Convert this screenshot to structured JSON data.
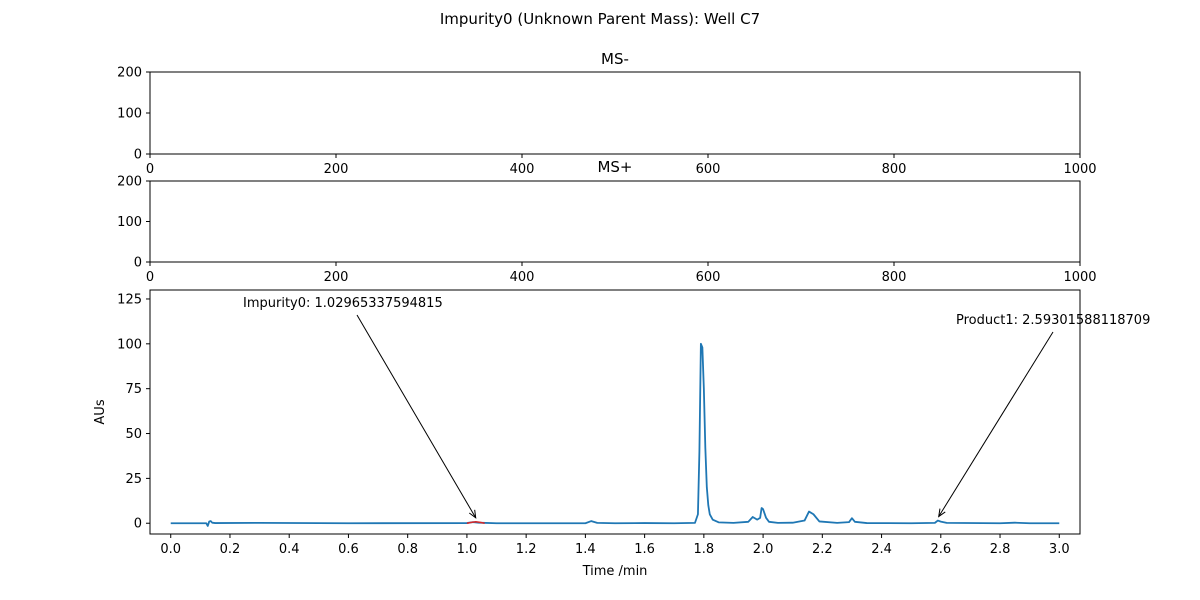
{
  "figure": {
    "suptitle": "Impurity0 (Unknown Parent Mass): Well C7"
  },
  "chart_data": [
    {
      "type": "bar",
      "title": "MS-",
      "xlabel": "",
      "ylabel": "",
      "xlim": [
        0,
        1000
      ],
      "ylim": [
        0,
        200
      ],
      "xticks": [
        0,
        200,
        400,
        600,
        800,
        1000
      ],
      "yticks": [
        0,
        100,
        200
      ],
      "series": []
    },
    {
      "type": "bar",
      "title": "MS+",
      "xlabel": "",
      "ylabel": "",
      "xlim": [
        0,
        1000
      ],
      "ylim": [
        0,
        200
      ],
      "xticks": [
        0,
        200,
        400,
        600,
        800,
        1000
      ],
      "yticks": [
        0,
        100,
        200
      ],
      "series": []
    },
    {
      "type": "line",
      "title": "",
      "xlabel": "Time /min",
      "ylabel": "AUs",
      "xlim": [
        -0.07,
        3.07
      ],
      "ylim": [
        -6,
        130
      ],
      "xticks": [
        0.0,
        0.2,
        0.4,
        0.6,
        0.8,
        1.0,
        1.2,
        1.4,
        1.6,
        1.8,
        2.0,
        2.2,
        2.4,
        2.6,
        2.8,
        3.0
      ],
      "xtick_labels": [
        "0.0",
        "0.2",
        "0.4",
        "0.6",
        "0.8",
        "1.0",
        "1.2",
        "1.4",
        "1.6",
        "1.8",
        "2.0",
        "2.2",
        "2.4",
        "2.6",
        "2.8",
        "3.0"
      ],
      "yticks": [
        0,
        25,
        50,
        75,
        100,
        125
      ],
      "series": [
        {
          "color": "#1f77b4",
          "x": [
            0.0,
            0.12,
            0.125,
            0.13,
            0.135,
            0.14,
            0.15,
            0.3,
            0.6,
            1.0,
            1.02,
            1.04,
            1.1,
            1.4,
            1.42,
            1.44,
            1.5,
            1.6,
            1.7,
            1.77,
            1.78,
            1.785,
            1.79,
            1.795,
            1.8,
            1.805,
            1.81,
            1.815,
            1.82,
            1.83,
            1.85,
            1.9,
            1.95,
            1.965,
            1.98,
            1.99,
            1.995,
            2.0,
            2.01,
            2.02,
            2.05,
            2.1,
            2.14,
            2.155,
            2.17,
            2.19,
            2.25,
            2.29,
            2.3,
            2.31,
            2.35,
            2.5,
            2.58,
            2.59,
            2.6,
            2.62,
            2.8,
            2.85,
            2.9,
            3.0
          ],
          "y": [
            0.0,
            0.0,
            -1.5,
            1.0,
            1.2,
            0.3,
            0.1,
            0.2,
            0.0,
            0.1,
            0.6,
            0.3,
            0.0,
            0.0,
            1.2,
            0.2,
            0.0,
            0.1,
            0.0,
            0.2,
            5.0,
            40.0,
            100.0,
            98.0,
            75.0,
            42.0,
            20.0,
            10.0,
            5.0,
            2.0,
            0.5,
            0.2,
            0.8,
            3.5,
            2.0,
            3.0,
            8.5,
            7.8,
            3.0,
            0.8,
            0.2,
            0.3,
            1.5,
            6.5,
            5.0,
            1.0,
            0.2,
            0.6,
            2.8,
            0.8,
            0.1,
            0.0,
            0.2,
            1.5,
            0.9,
            0.2,
            0.0,
            0.3,
            0.0,
            0.0
          ]
        },
        {
          "color": "#d62728",
          "x": [
            1.0,
            1.015,
            1.03,
            1.045,
            1.06
          ],
          "y": [
            0.0,
            0.5,
            0.8,
            0.5,
            0.0
          ]
        }
      ],
      "annotations": [
        {
          "text": "Impurity0: 1.02965337594815",
          "x": 1.0297,
          "y": 0.8
        },
        {
          "text": "Product1: 2.59301588118709",
          "x": 2.593,
          "y": 1.5
        }
      ]
    }
  ]
}
